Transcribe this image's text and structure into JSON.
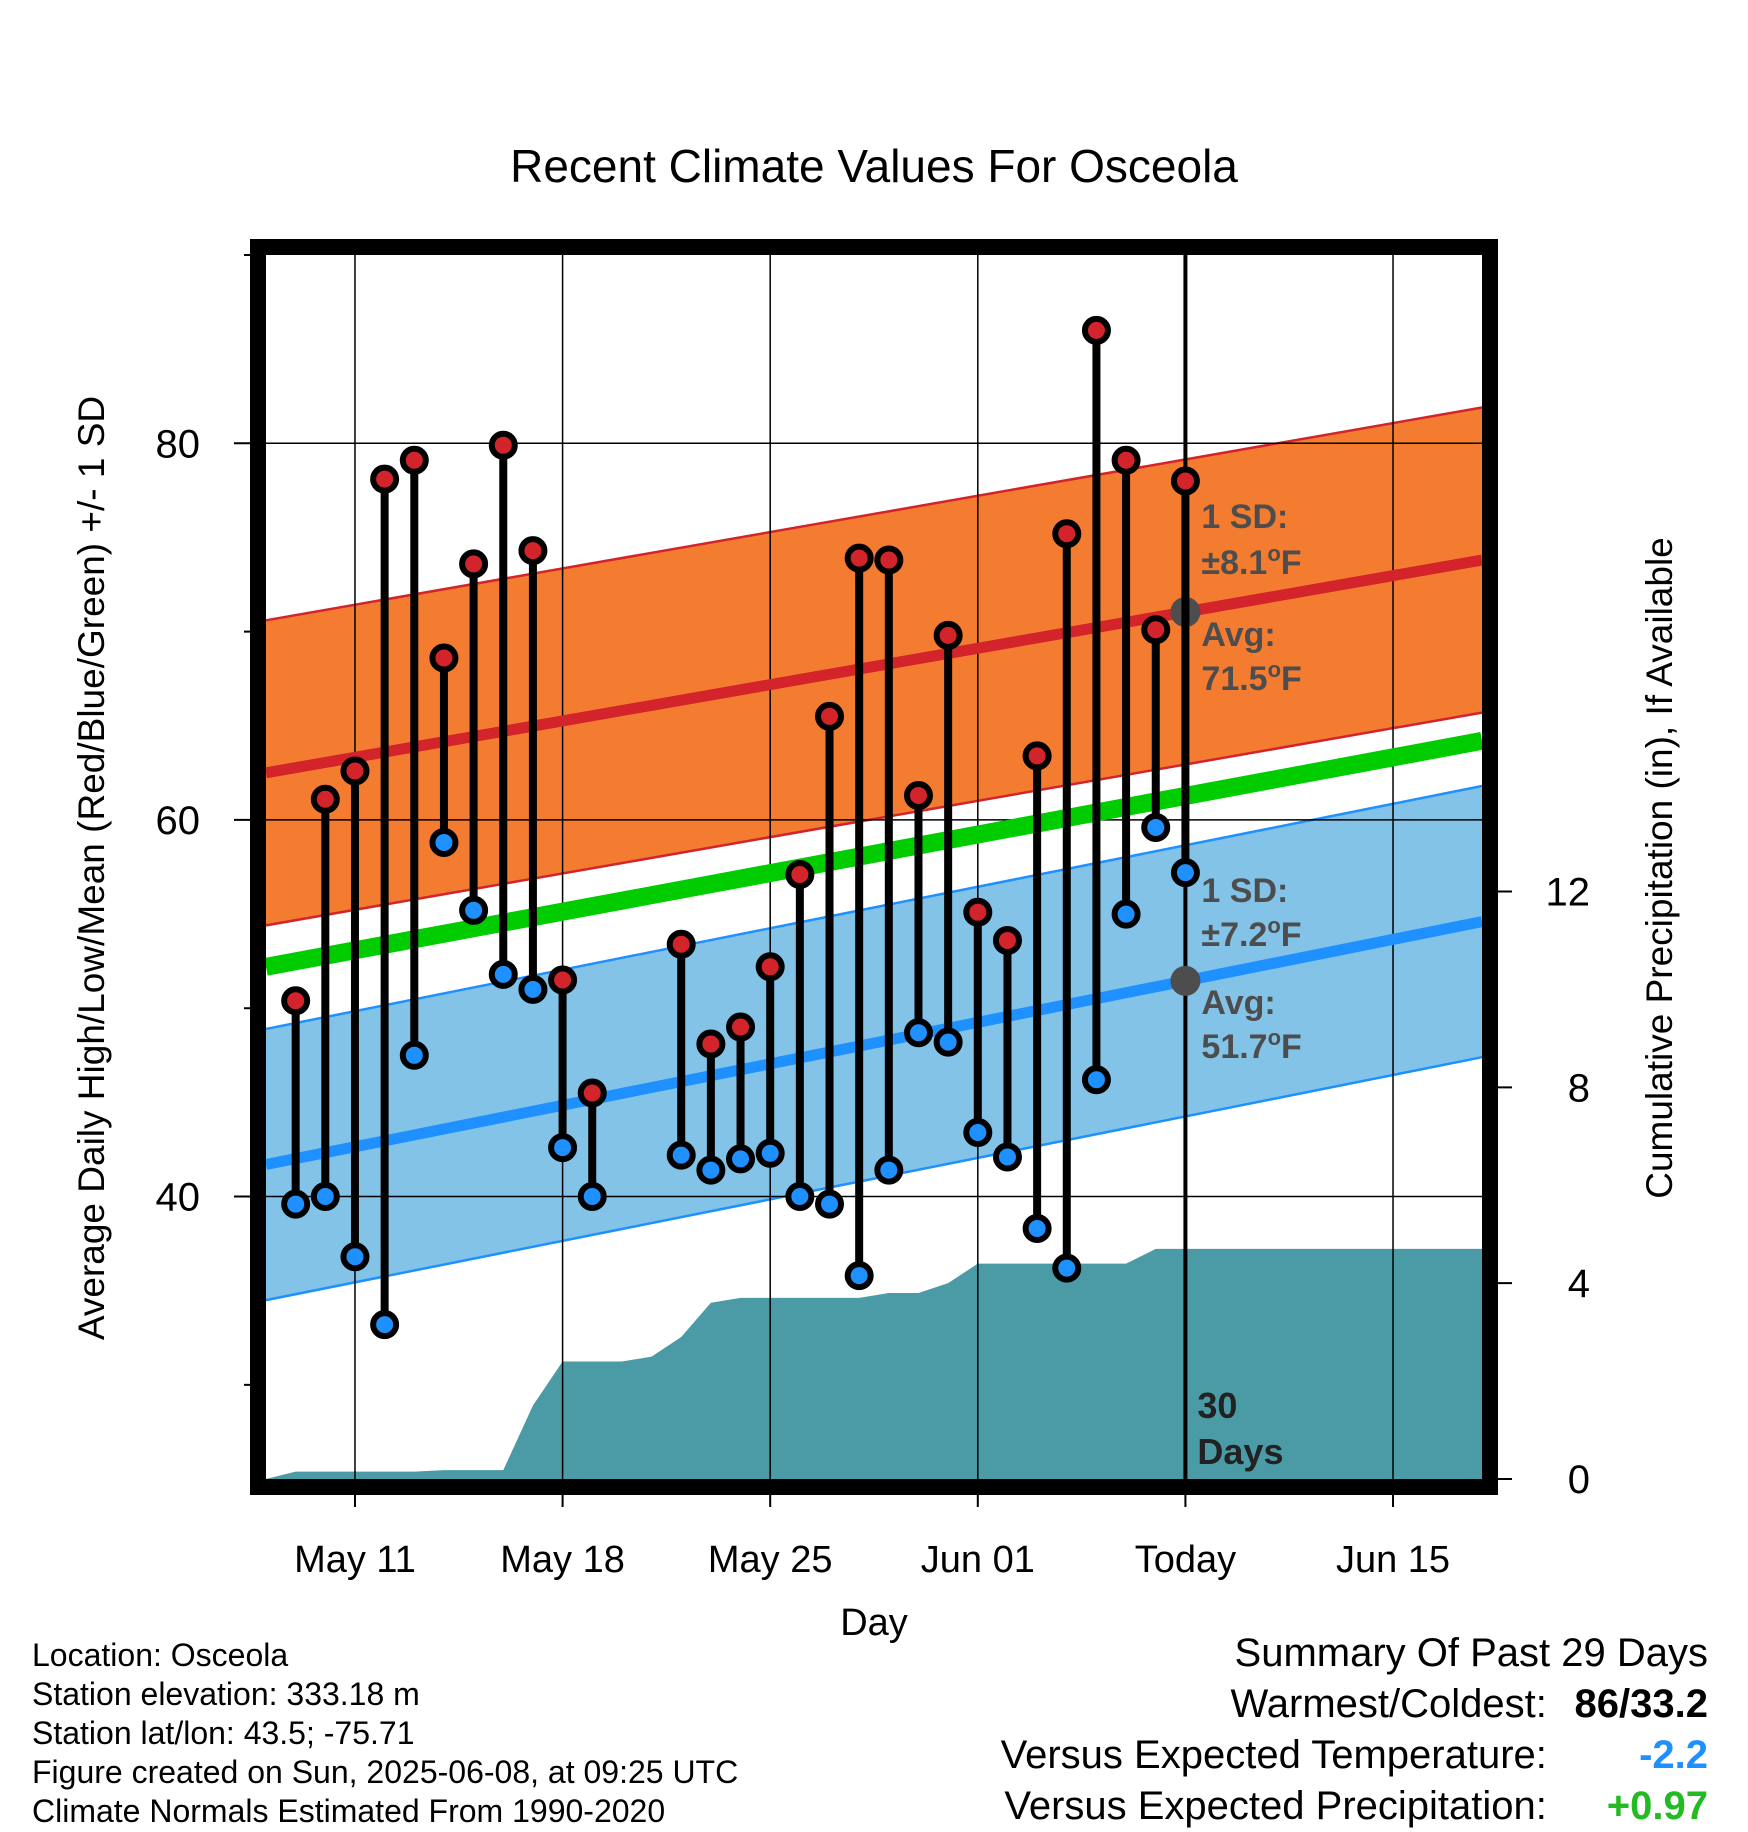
{
  "chart_data": {
    "type": "line",
    "title": "Recent Climate Values For Osceola",
    "xlabel": "Day",
    "ylabel_left": "Average Daily High/Low/Mean (Red/Blue/Green) +/- 1 SD",
    "ylabel_right": "Cumulative Precipitation (in), If Available",
    "xlim": [
      "2025-05-08",
      "2025-06-18"
    ],
    "x_ticks": [
      {
        "date": "2025-05-11",
        "label": "May 11"
      },
      {
        "date": "2025-05-18",
        "label": "May 18"
      },
      {
        "date": "2025-05-25",
        "label": "May 25"
      },
      {
        "date": "2025-06-01",
        "label": "Jun 01"
      },
      {
        "date": "2025-06-08",
        "label": "Today"
      },
      {
        "date": "2025-06-15",
        "label": "Jun 15"
      }
    ],
    "ylim_left": [
      25,
      90
    ],
    "y_ticks_left": [
      40,
      60,
      80
    ],
    "ylim_right": [
      0,
      25
    ],
    "y_ticks_right": [
      0,
      4,
      8,
      12
    ],
    "grid": true,
    "normals": {
      "start_date": "2025-05-08",
      "end_date": "2025-06-18",
      "avg_high": [
        62.5,
        73.8
      ],
      "avg_low": [
        41.7,
        54.6
      ],
      "avg_mean": [
        52.2,
        64.2
      ],
      "high_sd": 8.1,
      "low_sd": 7.2
    },
    "observations": [
      {
        "date": "2025-05-09",
        "high": 50.4,
        "low": 39.6
      },
      {
        "date": "2025-05-10",
        "high": 61.1,
        "low": 40.0
      },
      {
        "date": "2025-05-11",
        "high": 62.6,
        "low": 36.8
      },
      {
        "date": "2025-05-12",
        "high": 78.1,
        "low": 33.2
      },
      {
        "date": "2025-05-13",
        "high": 79.1,
        "low": 47.5
      },
      {
        "date": "2025-05-14",
        "high": 68.6,
        "low": 58.8
      },
      {
        "date": "2025-05-15",
        "high": 73.6,
        "low": 55.2
      },
      {
        "date": "2025-05-16",
        "high": 79.9,
        "low": 51.8
      },
      {
        "date": "2025-05-17",
        "high": 74.3,
        "low": 51.0
      },
      {
        "date": "2025-05-18",
        "high": 51.5,
        "low": 42.6
      },
      {
        "date": "2025-05-19",
        "high": 45.5,
        "low": 40.0
      },
      {
        "date": "2025-05-22",
        "high": 53.4,
        "low": 42.2
      },
      {
        "date": "2025-05-23",
        "high": 48.1,
        "low": 41.4
      },
      {
        "date": "2025-05-24",
        "high": 49.0,
        "low": 42.0
      },
      {
        "date": "2025-05-25",
        "high": 52.2,
        "low": 42.3
      },
      {
        "date": "2025-05-26",
        "high": 57.1,
        "low": 40.0
      },
      {
        "date": "2025-05-27",
        "high": 65.5,
        "low": 39.6
      },
      {
        "date": "2025-05-28",
        "high": 73.9,
        "low": 35.8
      },
      {
        "date": "2025-05-29",
        "high": 73.8,
        "low": 41.4
      },
      {
        "date": "2025-05-30",
        "high": 61.3,
        "low": 48.7
      },
      {
        "date": "2025-05-31",
        "high": 69.8,
        "low": 48.2
      },
      {
        "date": "2025-06-01",
        "high": 55.1,
        "low": 43.4
      },
      {
        "date": "2025-06-02",
        "high": 53.6,
        "low": 42.1
      },
      {
        "date": "2025-06-03",
        "high": 63.4,
        "low": 38.3
      },
      {
        "date": "2025-06-04",
        "high": 75.2,
        "low": 36.2
      },
      {
        "date": "2025-06-05",
        "high": 86.0,
        "low": 46.2
      },
      {
        "date": "2025-06-06",
        "high": 79.1,
        "low": 55.0
      },
      {
        "date": "2025-06-07",
        "high": 70.1,
        "low": 59.6
      },
      {
        "date": "2025-06-08",
        "high": 78.0,
        "low": 57.2
      }
    ],
    "cumulative_precipitation": [
      {
        "date": "2025-05-08",
        "value": 0.0
      },
      {
        "date": "2025-05-09",
        "value": 0.15
      },
      {
        "date": "2025-05-13",
        "value": 0.15
      },
      {
        "date": "2025-05-14",
        "value": 0.18
      },
      {
        "date": "2025-05-16",
        "value": 0.18
      },
      {
        "date": "2025-05-17",
        "value": 1.5
      },
      {
        "date": "2025-05-18",
        "value": 2.4
      },
      {
        "date": "2025-05-20",
        "value": 2.4
      },
      {
        "date": "2025-05-21",
        "value": 2.5
      },
      {
        "date": "2025-05-22",
        "value": 2.9
      },
      {
        "date": "2025-05-23",
        "value": 3.6
      },
      {
        "date": "2025-05-24",
        "value": 3.7
      },
      {
        "date": "2025-05-28",
        "value": 3.7
      },
      {
        "date": "2025-05-29",
        "value": 3.8
      },
      {
        "date": "2025-05-30",
        "value": 3.8
      },
      {
        "date": "2025-05-31",
        "value": 4.0
      },
      {
        "date": "2025-06-01",
        "value": 4.4
      },
      {
        "date": "2025-06-04",
        "value": 4.4
      },
      {
        "date": "2025-06-06",
        "value": 4.4
      },
      {
        "date": "2025-06-07",
        "value": 4.7
      },
      {
        "date": "2025-06-18",
        "value": 4.7
      }
    ],
    "annotations": {
      "high_sd_line1": "1 SD:",
      "high_sd_line2": "±8.1°F",
      "high_avg_line1": "Avg:",
      "high_avg_line2": "71.5°F",
      "low_sd_line1": "1 SD:",
      "low_sd_line2": "±7.2°F",
      "low_avg_line1": "Avg:",
      "low_avg_line2": "51.7°F",
      "days_line1": "30",
      "days_line2": "Days"
    },
    "colors": {
      "high_band": "#f47c30",
      "high_avg": "#d3242b",
      "low_band": "#84c3e8",
      "low_avg": "#1e90ff",
      "mean_line": "#00cc00",
      "precip": "#4a9ba6",
      "high_marker": "#d3242b",
      "low_marker": "#1e90ff",
      "annotation": "#4d4d4d"
    }
  },
  "footer": {
    "location": "Location: Osceola",
    "elevation": "Station elevation: 333.18 m",
    "latlon": "Station lat/lon: 43.5; -75.71",
    "created": "Figure created on Sun, 2025-06-08, at 09:25 UTC",
    "normals": "Climate Normals Estimated From 1990-2020"
  },
  "summary": {
    "title": "Summary Of Past 29 Days",
    "warmest_label": "Warmest/Coldest:",
    "warmest_value": "86/33.2",
    "temp_label": "Versus Expected Temperature:",
    "temp_value": "-2.2",
    "temp_color": "#1e90ff",
    "precip_label": "Versus Expected Precipitation:",
    "precip_value": "+0.97",
    "precip_color": "#22bb22"
  }
}
